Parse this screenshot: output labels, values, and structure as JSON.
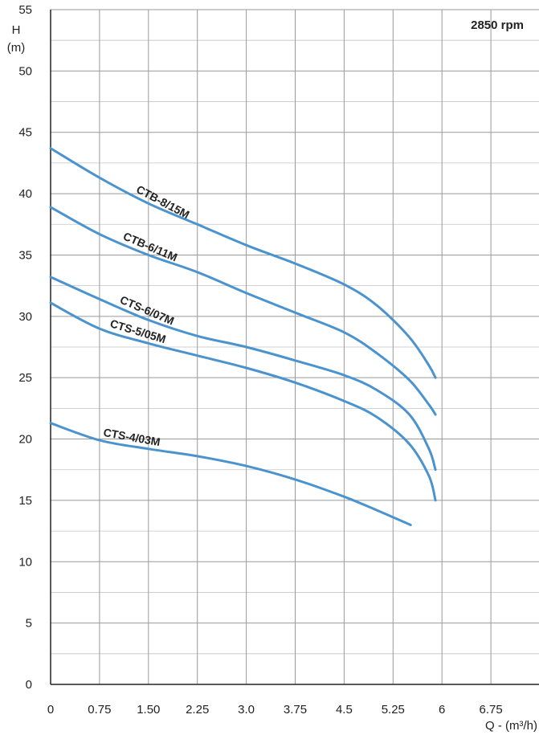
{
  "chart_data": {
    "type": "line",
    "annotation": "2850 rpm",
    "ylabel_line1": "H",
    "ylabel_line2": "(m)",
    "xlabel": "Q - (m³/h)",
    "xlim": [
      0,
      7.5
    ],
    "ylim": [
      0,
      55
    ],
    "x_ticks": [
      "0",
      "0.75",
      "1.50",
      "2.25",
      "3.0",
      "3.75",
      "4.5",
      "5.25",
      "6",
      "6.75"
    ],
    "y_ticks": [
      "0",
      "5",
      "10",
      "15",
      "20",
      "25",
      "30",
      "35",
      "40",
      "45",
      "50",
      "55"
    ],
    "grid": true,
    "series": [
      {
        "name": "CTB-8/15M",
        "x": [
          0,
          0.75,
          1.5,
          2.25,
          3.0,
          3.75,
          4.5,
          5.0,
          5.5,
          5.8,
          5.9
        ],
        "y": [
          43.7,
          41.3,
          39.2,
          37.5,
          35.8,
          34.3,
          32.6,
          30.9,
          28.3,
          26.0,
          25.0
        ]
      },
      {
        "name": "CTB-6/11M",
        "x": [
          0,
          0.75,
          1.5,
          2.25,
          3.0,
          3.75,
          4.5,
          5.0,
          5.5,
          5.8,
          5.9
        ],
        "y": [
          38.9,
          36.7,
          35.0,
          33.6,
          31.9,
          30.3,
          28.7,
          27.0,
          24.8,
          22.8,
          22.0
        ]
      },
      {
        "name": "CTS-6/07M",
        "x": [
          0,
          0.75,
          1.5,
          2.25,
          3.0,
          3.75,
          4.5,
          5.0,
          5.5,
          5.8,
          5.9
        ],
        "y": [
          33.2,
          31.4,
          29.7,
          28.4,
          27.5,
          26.4,
          25.2,
          24.0,
          22.0,
          19.2,
          17.5
        ]
      },
      {
        "name": "CTS-5/05M",
        "x": [
          0,
          0.75,
          1.5,
          2.25,
          3.0,
          3.75,
          4.5,
          5.0,
          5.5,
          5.8,
          5.9
        ],
        "y": [
          31.1,
          29.0,
          27.8,
          26.8,
          25.8,
          24.6,
          23.1,
          21.8,
          19.6,
          17.0,
          15.0
        ]
      },
      {
        "name": "CTS-4/03M",
        "x": [
          0,
          0.75,
          1.5,
          2.25,
          3.0,
          3.75,
          4.5,
          5.0,
          5.52
        ],
        "y": [
          21.3,
          19.9,
          19.2,
          18.6,
          17.8,
          16.7,
          15.3,
          14.2,
          13.0
        ]
      }
    ]
  }
}
